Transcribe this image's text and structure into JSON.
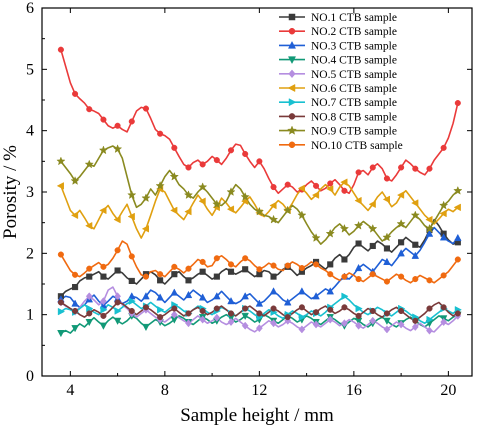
{
  "chart_data": {
    "type": "line",
    "xlabel": "Sample height / mm",
    "ylabel": "Porosity / %",
    "xlim": [
      2.8,
      21
    ],
    "ylim": [
      0,
      6
    ],
    "xticks": [
      4,
      8,
      12,
      16,
      20
    ],
    "yticks": [
      0,
      1,
      2,
      3,
      4,
      5,
      6
    ],
    "grid": false,
    "legend_position": "top-right",
    "x": [
      3.6,
      3.8,
      4.0,
      4.2,
      4.4,
      4.6,
      4.8,
      5.0,
      5.2,
      5.4,
      5.6,
      5.8,
      6.0,
      6.2,
      6.4,
      6.6,
      6.8,
      7.0,
      7.2,
      7.4,
      7.6,
      7.8,
      8.0,
      8.2,
      8.4,
      8.6,
      8.8,
      9.0,
      9.2,
      9.4,
      9.6,
      9.8,
      10.0,
      10.2,
      10.4,
      10.6,
      10.8,
      11.0,
      11.2,
      11.4,
      11.6,
      11.8,
      12.0,
      12.2,
      12.4,
      12.6,
      12.8,
      13.0,
      13.2,
      13.4,
      13.6,
      13.8,
      14.0,
      14.2,
      14.4,
      14.6,
      14.8,
      15.0,
      15.2,
      15.4,
      15.6,
      15.8,
      16.0,
      16.2,
      16.4,
      16.6,
      16.8,
      17.0,
      17.2,
      17.4,
      17.6,
      17.8,
      18.0,
      18.2,
      18.4,
      18.6,
      18.8,
      19.0,
      19.2,
      19.4,
      19.6,
      19.8,
      20.0,
      20.2,
      20.4
    ],
    "series": [
      {
        "name": "NO.1 CTB sample",
        "color": "#3a3a3a",
        "marker": "square",
        "values": [
          1.3,
          1.38,
          1.42,
          1.45,
          1.55,
          1.6,
          1.62,
          1.66,
          1.7,
          1.62,
          1.58,
          1.65,
          1.72,
          1.68,
          1.6,
          1.55,
          1.5,
          1.58,
          1.66,
          1.7,
          1.65,
          1.56,
          1.5,
          1.58,
          1.66,
          1.7,
          1.62,
          1.56,
          1.6,
          1.66,
          1.7,
          1.64,
          1.58,
          1.62,
          1.7,
          1.75,
          1.7,
          1.66,
          1.7,
          1.74,
          1.68,
          1.62,
          1.66,
          1.72,
          1.7,
          1.62,
          1.66,
          1.74,
          1.78,
          1.72,
          1.64,
          1.7,
          1.76,
          1.8,
          1.86,
          1.8,
          1.74,
          1.82,
          1.92,
          1.98,
          1.9,
          1.98,
          2.1,
          2.16,
          2.1,
          2.04,
          2.12,
          2.2,
          2.15,
          2.08,
          2.02,
          2.1,
          2.18,
          2.26,
          2.2,
          2.14,
          2.1,
          2.22,
          2.38,
          2.55,
          2.45,
          2.32,
          2.22,
          2.15,
          2.18
        ]
      },
      {
        "name": "NO.2 CTB sample",
        "color": "#ea3a3a",
        "marker": "circle",
        "values": [
          5.32,
          5.05,
          4.78,
          4.6,
          4.52,
          4.45,
          4.35,
          4.32,
          4.28,
          4.18,
          4.08,
          4.04,
          4.08,
          4.02,
          3.98,
          4.15,
          4.32,
          4.38,
          4.36,
          4.2,
          4.02,
          3.95,
          3.92,
          3.86,
          3.72,
          3.58,
          3.45,
          3.4,
          3.48,
          3.52,
          3.45,
          3.5,
          3.58,
          3.52,
          3.45,
          3.55,
          3.68,
          3.78,
          3.76,
          3.62,
          3.5,
          3.4,
          3.5,
          3.38,
          3.22,
          3.08,
          2.98,
          3.05,
          3.12,
          3.08,
          3.0,
          3.04,
          3.12,
          3.18,
          3.1,
          3.02,
          3.06,
          3.14,
          3.2,
          3.12,
          3.02,
          2.98,
          3.12,
          3.32,
          3.35,
          3.28,
          3.4,
          3.46,
          3.38,
          3.22,
          3.18,
          3.28,
          3.4,
          3.52,
          3.46,
          3.38,
          3.32,
          3.28,
          3.38,
          3.52,
          3.62,
          3.72,
          3.88,
          4.12,
          4.45
        ]
      },
      {
        "name": "NO.3 CTB sample",
        "color": "#1f5fd6",
        "marker": "triangle-up",
        "values": [
          1.25,
          1.3,
          1.28,
          1.18,
          1.12,
          1.16,
          1.25,
          1.32,
          1.22,
          1.15,
          1.22,
          1.3,
          1.26,
          1.18,
          1.22,
          1.3,
          1.28,
          1.22,
          1.3,
          1.4,
          1.36,
          1.28,
          1.2,
          1.28,
          1.36,
          1.3,
          1.24,
          1.32,
          1.4,
          1.34,
          1.28,
          1.2,
          1.24,
          1.3,
          1.38,
          1.3,
          1.22,
          1.18,
          1.22,
          1.3,
          1.34,
          1.26,
          1.18,
          1.22,
          1.3,
          1.38,
          1.32,
          1.24,
          1.2,
          1.26,
          1.32,
          1.38,
          1.32,
          1.26,
          1.3,
          1.36,
          1.42,
          1.38,
          1.46,
          1.55,
          1.62,
          1.58,
          1.66,
          1.76,
          1.82,
          1.76,
          1.7,
          1.8,
          1.9,
          1.86,
          1.8,
          1.9,
          2.0,
          2.08,
          2.02,
          1.96,
          2.05,
          2.18,
          2.32,
          2.42,
          2.34,
          2.26,
          2.2,
          2.16,
          2.25
        ]
      },
      {
        "name": "NO.4 CTB sample",
        "color": "#119977",
        "marker": "triangle-down",
        "values": [
          0.7,
          0.74,
          0.7,
          0.78,
          0.85,
          0.8,
          0.88,
          0.95,
          0.88,
          0.82,
          0.9,
          0.96,
          0.9,
          0.85,
          0.9,
          0.98,
          0.94,
          0.86,
          0.8,
          0.86,
          0.92,
          0.88,
          0.82,
          0.86,
          0.92,
          0.98,
          0.94,
          0.88,
          0.84,
          0.9,
          0.96,
          0.92,
          0.86,
          0.9,
          0.96,
          1.0,
          0.95,
          0.88,
          0.92,
          0.98,
          0.94,
          0.88,
          0.92,
          1.0,
          0.96,
          0.9,
          0.86,
          0.92,
          0.98,
          0.94,
          0.88,
          0.92,
          0.98,
          0.94,
          0.88,
          0.84,
          0.9,
          0.96,
          0.92,
          0.86,
          0.82,
          0.88,
          0.94,
          0.9,
          0.84,
          0.8,
          0.86,
          0.92,
          0.96,
          0.9,
          0.84,
          0.8,
          0.86,
          0.92,
          0.96,
          0.9,
          0.84,
          0.8,
          0.86,
          0.92,
          0.98,
          0.94,
          0.9,
          0.96,
          1.0
        ]
      },
      {
        "name": "NO.5 CTB sample",
        "color": "#b58ee0",
        "marker": "diamond",
        "values": [
          1.2,
          1.14,
          1.1,
          1.05,
          1.12,
          1.22,
          1.3,
          1.24,
          1.16,
          1.22,
          1.4,
          1.45,
          1.3,
          1.16,
          1.1,
          1.02,
          0.96,
          1.02,
          1.08,
          1.02,
          0.96,
          0.92,
          0.88,
          0.94,
          1.0,
          0.95,
          0.9,
          0.86,
          0.92,
          0.98,
          0.92,
          0.86,
          0.9,
          0.95,
          0.88,
          0.84,
          0.88,
          0.94,
          0.88,
          0.82,
          0.76,
          0.72,
          0.78,
          0.84,
          0.9,
          0.86,
          0.8,
          0.84,
          0.9,
          0.86,
          0.8,
          0.76,
          0.82,
          0.88,
          0.84,
          0.8,
          0.86,
          0.92,
          0.88,
          0.82,
          0.86,
          0.92,
          0.88,
          0.82,
          0.78,
          0.84,
          0.9,
          0.86,
          0.8,
          0.76,
          0.82,
          0.88,
          0.84,
          0.78,
          0.74,
          0.8,
          0.86,
          0.8,
          0.74,
          0.72,
          0.8,
          0.88,
          0.84,
          0.9,
          0.98
        ]
      },
      {
        "name": "NO.6 CTB sample",
        "color": "#e0a010",
        "marker": "triangle-left",
        "values": [
          3.1,
          2.9,
          2.7,
          2.62,
          2.7,
          2.58,
          2.45,
          2.4,
          2.55,
          2.7,
          2.78,
          2.65,
          2.55,
          2.68,
          2.8,
          2.6,
          2.4,
          2.25,
          2.4,
          2.62,
          2.85,
          3.05,
          3.0,
          2.85,
          2.7,
          2.62,
          2.55,
          2.68,
          2.82,
          2.95,
          2.85,
          2.72,
          2.62,
          2.75,
          2.9,
          2.82,
          2.72,
          2.66,
          2.75,
          2.85,
          2.92,
          2.8,
          2.66,
          2.6,
          2.68,
          2.78,
          2.86,
          2.8,
          2.7,
          2.82,
          2.96,
          3.06,
          2.98,
          2.88,
          2.95,
          3.05,
          3.12,
          3.05,
          2.95,
          3.08,
          3.16,
          3.1,
          2.98,
          2.86,
          2.78,
          2.7,
          2.8,
          2.92,
          3.0,
          2.88,
          2.76,
          2.82,
          2.95,
          3.02,
          2.92,
          2.82,
          2.72,
          2.62,
          2.55,
          2.48,
          2.56,
          2.65,
          2.72,
          2.68,
          2.75
        ]
      },
      {
        "name": "NO.7 CTB sample",
        "color": "#18c0d0",
        "marker": "triangle-right",
        "values": [
          1.05,
          1.1,
          1.08,
          1.04,
          1.1,
          1.16,
          1.1,
          1.04,
          1.0,
          1.08,
          1.16,
          1.12,
          1.06,
          1.12,
          1.18,
          1.22,
          1.16,
          1.1,
          1.14,
          1.2,
          1.14,
          1.08,
          1.04,
          1.1,
          1.16,
          1.12,
          1.06,
          1.02,
          1.08,
          1.14,
          1.1,
          1.04,
          1.0,
          1.06,
          1.12,
          1.08,
          1.02,
          0.98,
          1.04,
          1.1,
          1.06,
          1.0,
          0.96,
          1.02,
          1.08,
          1.04,
          0.98,
          0.94,
          1.0,
          1.06,
          1.02,
          0.96,
          1.0,
          1.06,
          1.02,
          0.98,
          1.04,
          1.12,
          1.18,
          1.24,
          1.3,
          1.24,
          1.16,
          1.1,
          1.04,
          1.0,
          1.06,
          1.12,
          1.08,
          1.02,
          0.98,
          1.04,
          1.1,
          1.06,
          1.0,
          0.96,
          0.9,
          0.86,
          0.92,
          0.98,
          1.04,
          1.1,
          1.06,
          1.02,
          1.08
        ]
      },
      {
        "name": "NO.8 CTB sample",
        "color": "#7a3a3a",
        "marker": "circle",
        "values": [
          1.2,
          1.15,
          1.1,
          1.06,
          1.0,
          0.96,
          1.02,
          1.08,
          1.04,
          0.98,
          1.04,
          1.12,
          1.2,
          1.18,
          1.12,
          1.06,
          1.0,
          1.06,
          1.12,
          1.08,
          1.02,
          0.96,
          1.0,
          1.06,
          1.1,
          1.04,
          0.98,
          1.02,
          1.08,
          1.12,
          1.06,
          1.0,
          1.04,
          1.1,
          1.14,
          1.08,
          1.02,
          0.98,
          1.04,
          1.1,
          1.14,
          1.08,
          1.02,
          0.98,
          1.04,
          1.1,
          1.06,
          1.0,
          0.96,
          1.02,
          1.08,
          1.12,
          1.06,
          1.0,
          1.04,
          1.1,
          1.14,
          1.08,
          1.02,
          1.06,
          1.12,
          1.08,
          1.02,
          0.98,
          1.04,
          1.1,
          1.06,
          1.0,
          0.96,
          1.02,
          1.08,
          1.12,
          1.06,
          1.0,
          0.94,
          0.9,
          0.96,
          1.02,
          1.1,
          1.16,
          1.2,
          1.12,
          1.04,
          0.98,
          1.02
        ]
      },
      {
        "name": "NO.9 CTB sample",
        "color": "#8a8a20",
        "marker": "star",
        "values": [
          3.5,
          3.4,
          3.3,
          3.18,
          3.25,
          3.35,
          3.45,
          3.42,
          3.55,
          3.68,
          3.72,
          3.75,
          3.7,
          3.55,
          3.25,
          2.95,
          2.75,
          2.8,
          2.9,
          3.05,
          2.95,
          3.1,
          3.25,
          3.35,
          3.25,
          3.12,
          3.05,
          2.95,
          2.9,
          3.0,
          3.08,
          3.0,
          2.9,
          2.8,
          2.78,
          2.85,
          3.0,
          3.12,
          3.05,
          2.92,
          2.8,
          2.72,
          2.68,
          2.62,
          2.6,
          2.55,
          2.5,
          2.6,
          2.7,
          2.78,
          2.72,
          2.62,
          2.48,
          2.35,
          2.25,
          2.15,
          2.22,
          2.32,
          2.42,
          2.48,
          2.4,
          2.3,
          2.36,
          2.45,
          2.52,
          2.46,
          2.4,
          2.3,
          2.2,
          2.26,
          2.35,
          2.42,
          2.48,
          2.42,
          2.52,
          2.62,
          2.55,
          2.45,
          2.4,
          2.52,
          2.65,
          2.78,
          2.85,
          2.95,
          3.02
        ]
      },
      {
        "name": "NO.10 CTB sample",
        "color": "#f06a10",
        "marker": "circle",
        "values": [
          1.98,
          1.85,
          1.72,
          1.65,
          1.62,
          1.68,
          1.75,
          1.8,
          1.85,
          1.78,
          1.82,
          1.92,
          2.05,
          2.2,
          2.15,
          1.95,
          1.78,
          1.65,
          1.62,
          1.7,
          1.72,
          1.66,
          1.62,
          1.7,
          1.78,
          1.74,
          1.68,
          1.75,
          1.82,
          1.9,
          1.86,
          1.78,
          1.8,
          1.92,
          1.96,
          1.9,
          1.82,
          1.78,
          1.86,
          1.92,
          1.88,
          1.8,
          1.74,
          1.78,
          1.84,
          1.8,
          1.74,
          1.72,
          1.8,
          1.86,
          1.82,
          1.76,
          1.8,
          1.86,
          1.82,
          1.76,
          1.72,
          1.66,
          1.6,
          1.56,
          1.62,
          1.68,
          1.64,
          1.58,
          1.54,
          1.6,
          1.66,
          1.62,
          1.58,
          1.54,
          1.6,
          1.66,
          1.62,
          1.56,
          1.52,
          1.58,
          1.64,
          1.6,
          1.56,
          1.52,
          1.58,
          1.64,
          1.7,
          1.8,
          1.9
        ]
      }
    ]
  }
}
